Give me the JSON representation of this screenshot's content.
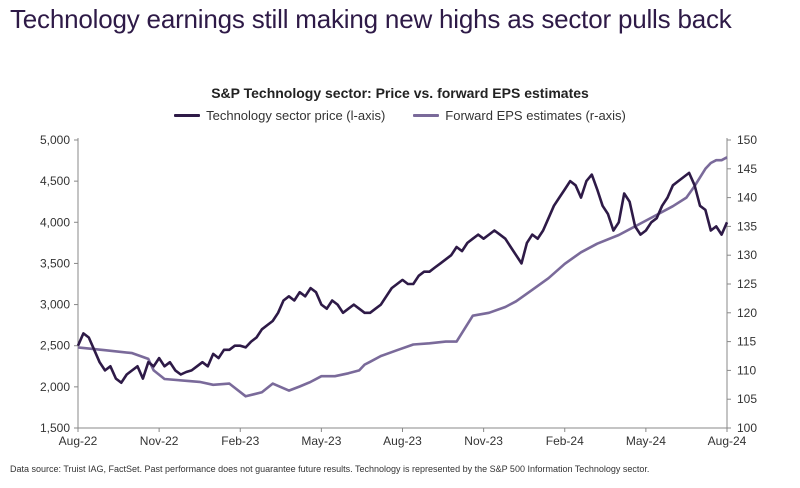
{
  "headline": "Technology earnings still making new highs as sector pulls back",
  "footnote": "Data source: Truist IAG, FactSet. Past performance does not guarantee future results. Technology is represented by the S&P 500 Information Technology sector.",
  "chart_data": {
    "type": "line",
    "title": "S&P Technology sector: Price vs. forward EPS estimates",
    "legend_position": "top-center",
    "x_ticks": [
      "Aug-22",
      "Nov-22",
      "Feb-23",
      "May-23",
      "Aug-23",
      "Nov-23",
      "Feb-24",
      "May-24",
      "Aug-24"
    ],
    "left_axis": {
      "ylim": [
        1500,
        5000
      ],
      "ticks": [
        "1,500",
        "2,000",
        "2,500",
        "3,000",
        "3,500",
        "4,000",
        "4,500",
        "5,000"
      ]
    },
    "right_axis": {
      "ylim": [
        100,
        150
      ],
      "ticks": [
        "100",
        "105",
        "110",
        "115",
        "120",
        "125",
        "130",
        "135",
        "140",
        "145",
        "150"
      ]
    },
    "colors": {
      "price": "#2e1a47",
      "eps": "#7a6a9a"
    },
    "series": [
      {
        "name": "Technology sector price (l-axis)",
        "axis": "left",
        "x": [
          0,
          0.2,
          0.4,
          0.6,
          0.8,
          1.0,
          1.2,
          1.4,
          1.6,
          1.8,
          2.0,
          2.2,
          2.4,
          2.6,
          2.8,
          3.0,
          3.2,
          3.4,
          3.6,
          3.8,
          4.0,
          4.2,
          4.4,
          4.6,
          4.8,
          5.0,
          5.2,
          5.4,
          5.6,
          5.8,
          6.0,
          6.2,
          6.4,
          6.6,
          6.8,
          7.0,
          7.2,
          7.4,
          7.6,
          7.8,
          8.0,
          8.2,
          8.4,
          8.6,
          8.8,
          9.0,
          9.2,
          9.4,
          9.6,
          9.8,
          10.0,
          10.2,
          10.4,
          10.6,
          10.8,
          11.0,
          11.2,
          11.4,
          11.6,
          11.8,
          12.0,
          12.2,
          12.4,
          12.6,
          12.8,
          13.0,
          13.2,
          13.4,
          13.6,
          13.8,
          14.0,
          14.2,
          14.4,
          14.6,
          14.8,
          15.0,
          15.2,
          15.4,
          15.6,
          15.8,
          16.0,
          16.2,
          16.4,
          16.6,
          16.8,
          17.0,
          17.2,
          17.4,
          17.6,
          17.8,
          18.0,
          18.2,
          18.4,
          18.6,
          18.8,
          19.0,
          19.2,
          19.4,
          19.6,
          19.8,
          20.0,
          20.2,
          20.4,
          20.6,
          20.8,
          21.0,
          21.2,
          21.4,
          21.6,
          21.8,
          22.0,
          22.2,
          22.4,
          22.6,
          22.8,
          23.0,
          23.2,
          23.4,
          23.6,
          23.8,
          24.0
        ],
        "values": [
          2500,
          2650,
          2600,
          2450,
          2300,
          2200,
          2250,
          2100,
          2050,
          2150,
          2200,
          2250,
          2100,
          2300,
          2250,
          2350,
          2250,
          2300,
          2200,
          2150,
          2180,
          2200,
          2250,
          2300,
          2250,
          2400,
          2350,
          2450,
          2450,
          2500,
          2500,
          2480,
          2550,
          2600,
          2700,
          2750,
          2800,
          2900,
          3050,
          3100,
          3050,
          3150,
          3100,
          3200,
          3150,
          3000,
          2950,
          3050,
          3000,
          2900,
          2950,
          3000,
          2950,
          2900,
          2900,
          2950,
          3000,
          3100,
          3200,
          3250,
          3300,
          3250,
          3250,
          3350,
          3400,
          3400,
          3450,
          3500,
          3550,
          3600,
          3700,
          3650,
          3750,
          3800,
          3850,
          3800,
          3850,
          3900,
          3850,
          3800,
          3700,
          3600,
          3500,
          3750,
          3850,
          3800,
          3900,
          4050,
          4200,
          4300,
          4400,
          4500,
          4450,
          4300,
          4500,
          4580,
          4400,
          4200,
          4100,
          3900,
          4000,
          4350,
          4250,
          3950,
          3850,
          3900,
          4000,
          4050,
          4200,
          4300,
          4450,
          4500,
          4550,
          4600,
          4450,
          4200,
          4150,
          3900,
          3950,
          3850,
          4000
        ]
      },
      {
        "name": "Forward EPS estimates (r-axis)",
        "axis": "right",
        "x": [
          0,
          1.0,
          2.0,
          2.6,
          2.8,
          3.2,
          4.0,
          4.5,
          5.0,
          5.6,
          6.2,
          6.8,
          7.2,
          7.8,
          8.2,
          8.6,
          9.0,
          9.5,
          10.0,
          10.4,
          10.6,
          10.8,
          11.2,
          11.8,
          12.4,
          13.0,
          13.6,
          14.0,
          14.6,
          15.2,
          15.8,
          16.2,
          16.8,
          17.4,
          18.0,
          18.6,
          19.2,
          20.0,
          20.8,
          21.4,
          22.0,
          22.5,
          22.8,
          23.0,
          23.2,
          23.4,
          23.6,
          23.8,
          24.0
        ],
        "values": [
          114,
          113.5,
          113,
          112,
          110,
          108.5,
          108.2,
          108,
          107.5,
          107.7,
          105.5,
          106.2,
          107.7,
          106.5,
          107.2,
          108,
          109,
          109,
          109.5,
          110,
          111,
          111.5,
          112.5,
          113.5,
          114.5,
          114.7,
          115,
          115,
          119.5,
          120,
          121,
          122,
          124,
          126,
          128.5,
          130.5,
          132,
          133.5,
          135.5,
          137,
          138.5,
          140,
          142,
          143.5,
          145,
          146,
          146.5,
          146.5,
          147
        ]
      }
    ]
  }
}
